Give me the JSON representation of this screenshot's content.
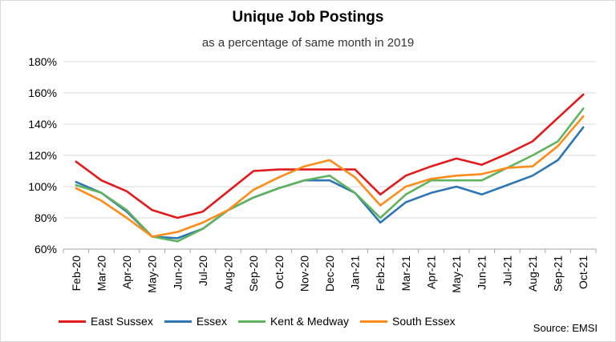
{
  "chart_data": {
    "type": "line",
    "title": "Unique Job Postings",
    "subtitle": "as a percentage of same month in 2019",
    "source": "Source: EMSI",
    "categories": [
      "Feb-20",
      "Mar-20",
      "Apr-20",
      "May-20",
      "Jun-20",
      "Jul-20",
      "Aug-20",
      "Sep-20",
      "Oct-20",
      "Nov-20",
      "Dec-20",
      "Jan-21",
      "Feb-21",
      "Mar-21",
      "Apr-21",
      "May-21",
      "Jun-21",
      "Jul-21",
      "Aug-21",
      "Sep-21",
      "Oct-21"
    ],
    "ylim": [
      60,
      180
    ],
    "yticks": [
      60,
      80,
      100,
      120,
      140,
      160,
      180
    ],
    "ytick_labels": [
      "60%",
      "80%",
      "100%",
      "120%",
      "140%",
      "160%",
      "180%"
    ],
    "grid": true,
    "legend_position": "bottom-left",
    "series": [
      {
        "name": "East Sussex",
        "color": "#e31a1c",
        "values": [
          116,
          104,
          97,
          85,
          80,
          84,
          97,
          110,
          111,
          111,
          111,
          111,
          95,
          107,
          113,
          118,
          114,
          121,
          129,
          144,
          159
        ]
      },
      {
        "name": "Essex",
        "color": "#2e75b6",
        "values": [
          103,
          96,
          84,
          68,
          67,
          73,
          85,
          93,
          99,
          104,
          104,
          96,
          77,
          90,
          96,
          100,
          95,
          101,
          107,
          117,
          138
        ]
      },
      {
        "name": "Kent & Medway",
        "color": "#5fb35f",
        "values": [
          101,
          96,
          85,
          68,
          65,
          73,
          85,
          93,
          99,
          104,
          107,
          96,
          80,
          95,
          104,
          104,
          104,
          112,
          120,
          129,
          150
        ]
      },
      {
        "name": "South Essex",
        "color": "#ff8c1a",
        "values": [
          99,
          91,
          80,
          68,
          71,
          77,
          85,
          98,
          106,
          113,
          117,
          106,
          88,
          100,
          105,
          107,
          108,
          112,
          113,
          126,
          145
        ]
      }
    ]
  }
}
